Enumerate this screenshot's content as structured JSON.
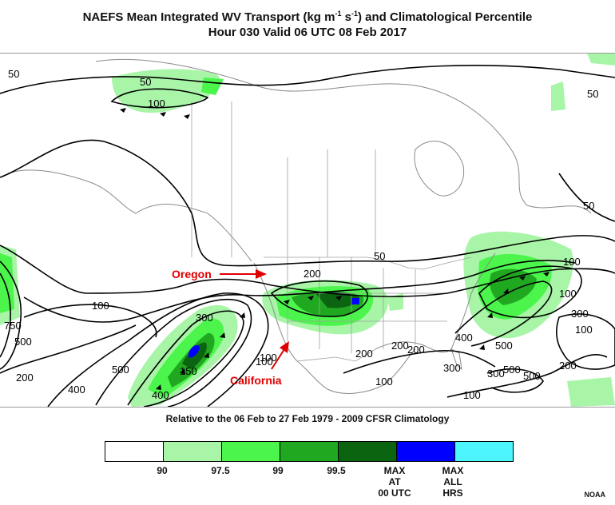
{
  "title": {
    "line1": "NAEFS Mean Integrated WV Transport (kg m",
    "line1_sup1": "-1",
    "line1_mid": " s",
    "line1_sup2": "-1",
    "line1_end": ") and Climatological Percentile",
    "line2": "Hour 030 Valid 06 UTC 08 Feb 2017"
  },
  "subtitle": "Relative to the 06 Feb to 27 Feb 1979 - 2009 CFSR Climatology",
  "annotations": {
    "oregon": "Oregon",
    "california": "California",
    "arrow_color": "#e00000"
  },
  "contour_labels": [
    "50",
    "50",
    "100",
    "50",
    "50",
    "100",
    "100",
    "200",
    "300",
    "100",
    "200",
    "200",
    "300",
    "500",
    "750",
    "500",
    "400",
    "200",
    "400",
    "300",
    "500",
    "150",
    "100",
    "50",
    "200",
    "100",
    "100",
    "500",
    "300",
    "500",
    "200",
    "100",
    "100",
    "400"
  ],
  "legend": {
    "colors": [
      "#ffffff",
      "#a8f5a8",
      "#4cf54c",
      "#21a821",
      "#0a6410",
      "#0000ff",
      "#4df5ff"
    ],
    "labels": [
      "90",
      "97.5",
      "99",
      "99.5",
      "MAX\nAT\n00 UTC",
      "MAX\nALL\nHRS"
    ]
  },
  "credit": "NOAA"
}
